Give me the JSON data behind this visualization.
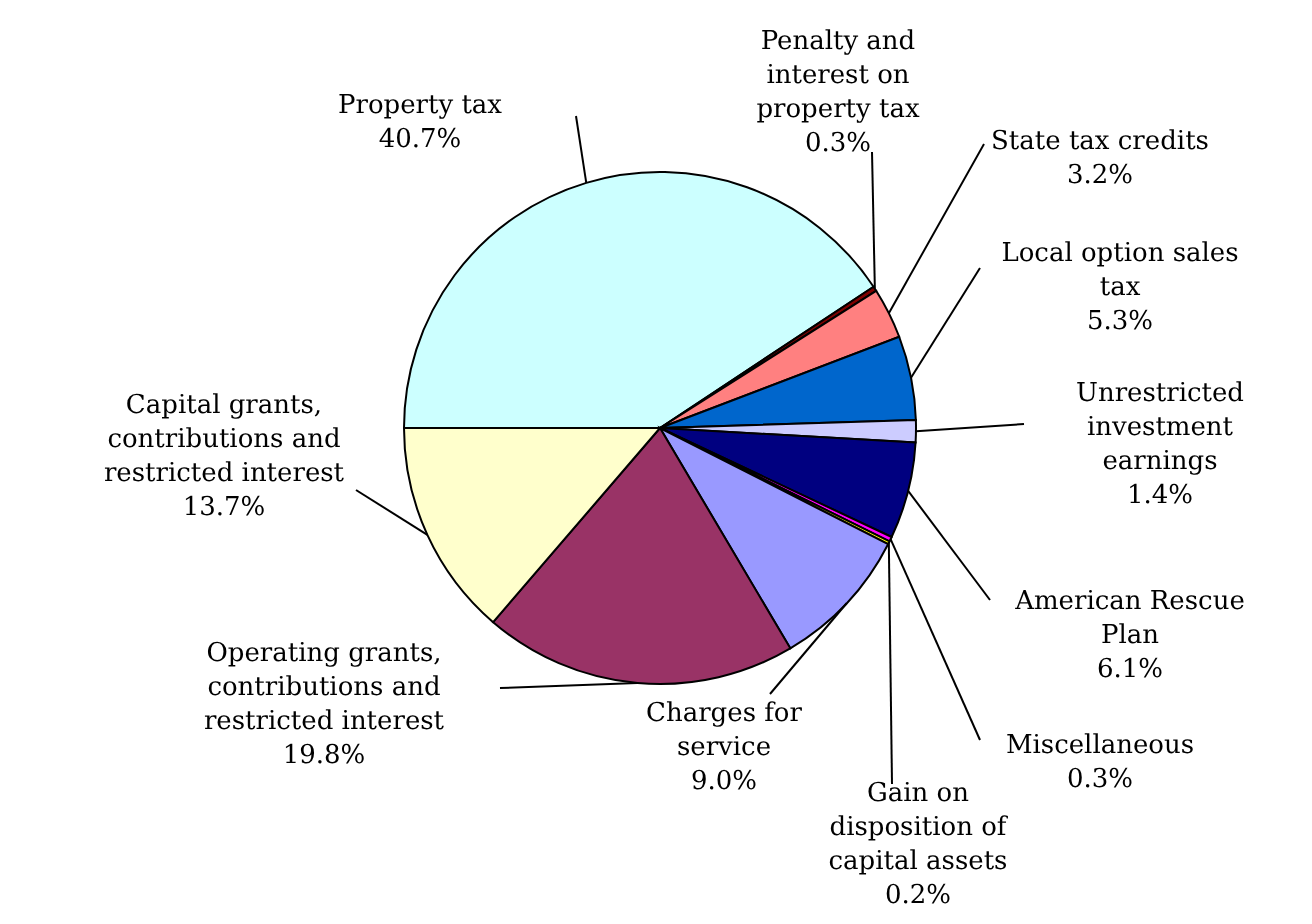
{
  "chart_data": {
    "type": "pie",
    "categories": [
      "Property tax",
      "Penalty and interest on property tax",
      "State tax credits",
      "Local option sales tax",
      "Unrestricted investment earnings",
      "American Rescue Plan",
      "Miscellaneous",
      "Gain on disposition of capital assets",
      "Charges for service",
      "Operating grants, contributions and restricted interest",
      "Capital grants, contributions and restricted interest"
    ],
    "values": [
      40.7,
      0.3,
      3.2,
      5.3,
      1.4,
      6.1,
      0.3,
      0.2,
      9.0,
      19.8,
      13.7
    ],
    "colors": [
      "#ccffff",
      "#800000",
      "#ff8080",
      "#0066cc",
      "#ccccff",
      "#000080",
      "#ff00ff",
      "#ffff00",
      "#9999ff",
      "#993366",
      "#ffffcc"
    ],
    "value_labels": [
      "40.7%",
      "0.3%",
      "3.2%",
      "5.3%",
      "1.4%",
      "6.1%",
      "0.3%",
      "0.2%",
      "9.0%",
      "19.8%",
      "13.7%"
    ]
  }
}
